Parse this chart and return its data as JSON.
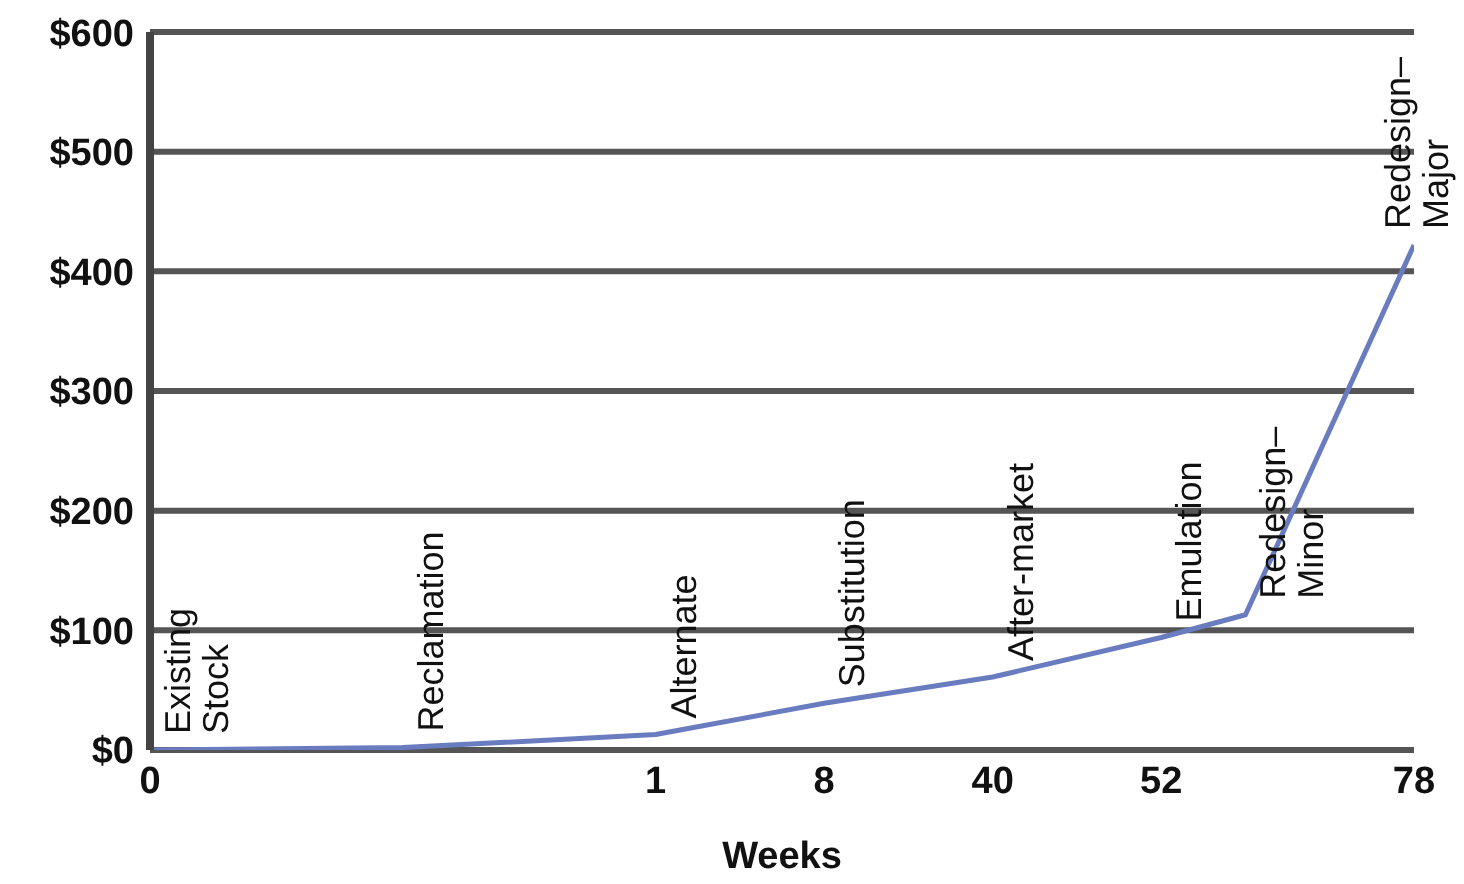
{
  "chart_data": {
    "type": "line",
    "xlabel": "Weeks",
    "categories": [
      "0",
      null,
      null,
      null,
      null,
      null,
      "1",
      null,
      "8",
      null,
      "40",
      null,
      "52",
      null,
      null,
      "78"
    ],
    "series": [
      {
        "color": "#6a7cc0",
        "values": [
          0,
          null,
          null,
          2,
          null,
          null,
          13,
          null,
          39,
          null,
          61,
          null,
          94,
          113,
          null,
          422
        ]
      }
    ],
    "ylim": [
      0,
      600
    ],
    "yticks": [
      {
        "value": 0,
        "label": "$0"
      },
      {
        "value": 100,
        "label": "$100"
      },
      {
        "value": 200,
        "label": "$200"
      },
      {
        "value": 300,
        "label": "$300"
      },
      {
        "value": 400,
        "label": "$400"
      },
      {
        "value": 500,
        "label": "$500"
      },
      {
        "value": 600,
        "label": "$600"
      }
    ],
    "grid": "y",
    "marker": "none",
    "line_style": "solid",
    "annotations": [
      "Existing Stock",
      "Reclamation",
      "Alternate",
      "Substitution",
      "After-market",
      "Emulation",
      "Redesign–Minor",
      "Redesign–Major"
    ]
  }
}
